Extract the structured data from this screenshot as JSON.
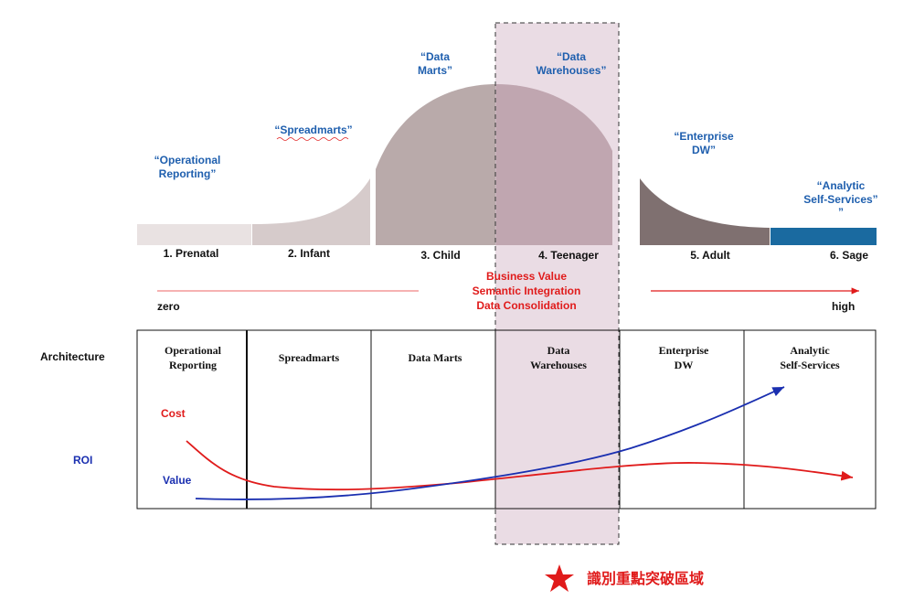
{
  "stages": [
    {
      "label": "1. Prenatal",
      "quote": [
        "“Operational",
        "Reporting”"
      ]
    },
    {
      "label": "2. Infant",
      "quote": [
        "“Spreadmarts”"
      ]
    },
    {
      "label": "3. Child",
      "quote": [
        "“Data",
        "Marts”"
      ]
    },
    {
      "label": "4. Teenager",
      "quote": [
        "“Data",
        "Warehouses”"
      ]
    },
    {
      "label": "5. Adult",
      "quote": [
        "“Enterprise",
        "DW”"
      ]
    },
    {
      "label": "6. Sage",
      "quote": [
        "“Analytic",
        "Self-Services”",
        "”"
      ]
    }
  ],
  "value_drivers": [
    "Business Value",
    "Semantic Integration",
    "Data Consolidation"
  ],
  "scale": {
    "low": "zero",
    "high": "high"
  },
  "table": {
    "row_label": "Architecture",
    "columns": [
      [
        "Operational",
        "Reporting"
      ],
      [
        "Spreadmarts"
      ],
      [
        "Data Marts"
      ],
      [
        "Data",
        "Warehouses"
      ],
      [
        "Enterprise",
        "DW"
      ],
      [
        "Analytic",
        "Self-Services"
      ]
    ],
    "roi_label": "ROI",
    "cost_label": "Cost",
    "value_label": "Value"
  },
  "highlight": {
    "label": "識別重點突破區域"
  }
}
